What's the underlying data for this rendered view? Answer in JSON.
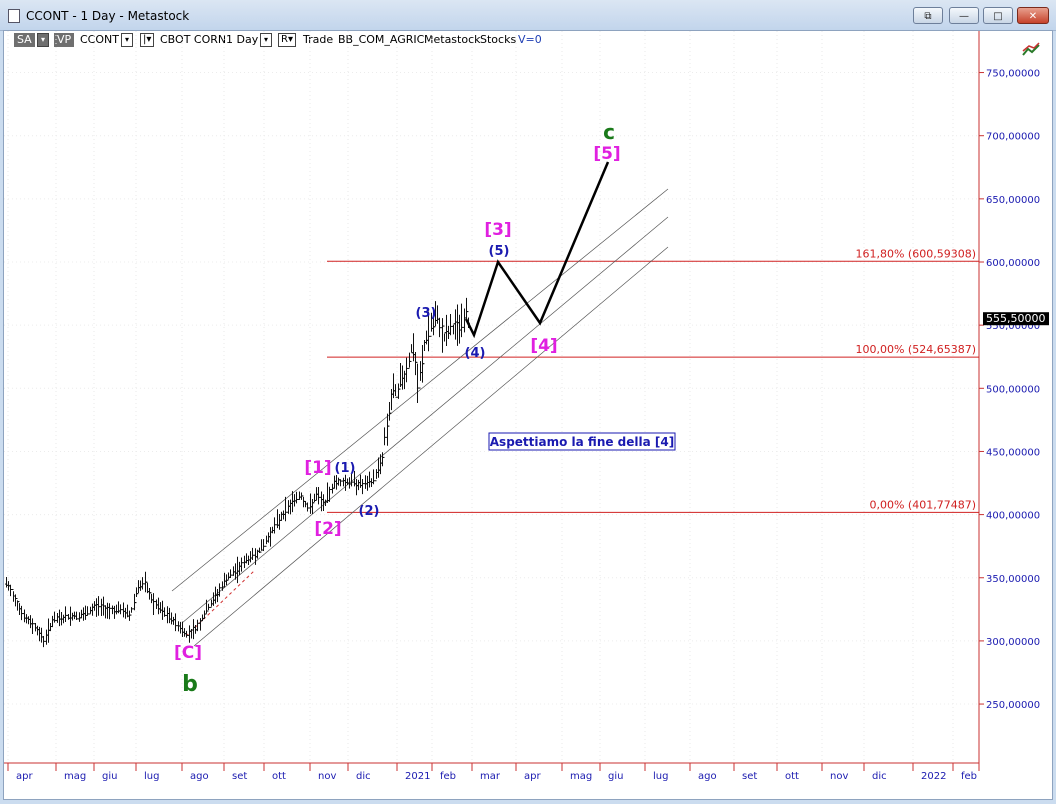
{
  "window": {
    "title": "CCONT - 1 Day - Metastock",
    "buttons": {
      "restore": "⧉",
      "minimize": "—",
      "maximize": "□",
      "close": "✕"
    }
  },
  "toolbar": {
    "sa": "SA",
    "sa_arrow": "▾",
    "vp": "VP",
    "symbol": "CCONT",
    "symbol_arrow": "▾",
    "i_btn": "|▾",
    "description": "CBOT CORN",
    "period": "1 Day",
    "period_arrow": "▾",
    "r_btn": "R▾",
    "trade": "Trade",
    "exchange": "BB_COM_AGRIC",
    "source": "Metastock",
    "type": "Stocks",
    "volume": "V=0"
  },
  "chart": {
    "price_labels": [
      "750,00000",
      "700,00000",
      "650,00000",
      "600,00000",
      "550,00000",
      "500,00000",
      "450,00000",
      "400,00000",
      "350,00000",
      "300,00000",
      "250,00000"
    ],
    "price_values": [
      750,
      700,
      650,
      600,
      550,
      500,
      450,
      400,
      350,
      300,
      250
    ],
    "current_price": "555,50000",
    "current_value": 555.5,
    "month_labels": [
      "apr",
      "mag",
      "giu",
      "lug",
      "ago",
      "set",
      "ott",
      "nov",
      "dic",
      "2021",
      "feb",
      "mar",
      "apr",
      "mag",
      "giu",
      "lug",
      "ago",
      "set",
      "ott",
      "nov",
      "dic",
      "2022",
      "feb"
    ],
    "fib_levels": [
      {
        "label": "161,80% (600,59308)",
        "value": 600.59308
      },
      {
        "label": "100,00% (524,65387)",
        "value": 524.65387
      },
      {
        "label": "0,00% (401,77487)",
        "value": 401.77487
      }
    ],
    "wave_labels": {
      "c_major": "c",
      "five_major": "[5]",
      "three_major": "[3]",
      "five_minor": "(5)",
      "three_minor": "(3)",
      "four_minor": "(4)",
      "four_major": "[4]",
      "one_major": "[1]",
      "one_minor": "(1)",
      "two_minor": "(2)",
      "two_major": "[2]",
      "c_bracket": "[C]",
      "b_major": "b"
    },
    "annotation": "Aspettiamo la fine della [4]",
    "colors": {
      "magenta": "#e020e0",
      "green": "#1a7a1a",
      "blue": "#1a1ab0",
      "fib_red": "#d02020",
      "axis_red": "#c83232"
    }
  }
}
